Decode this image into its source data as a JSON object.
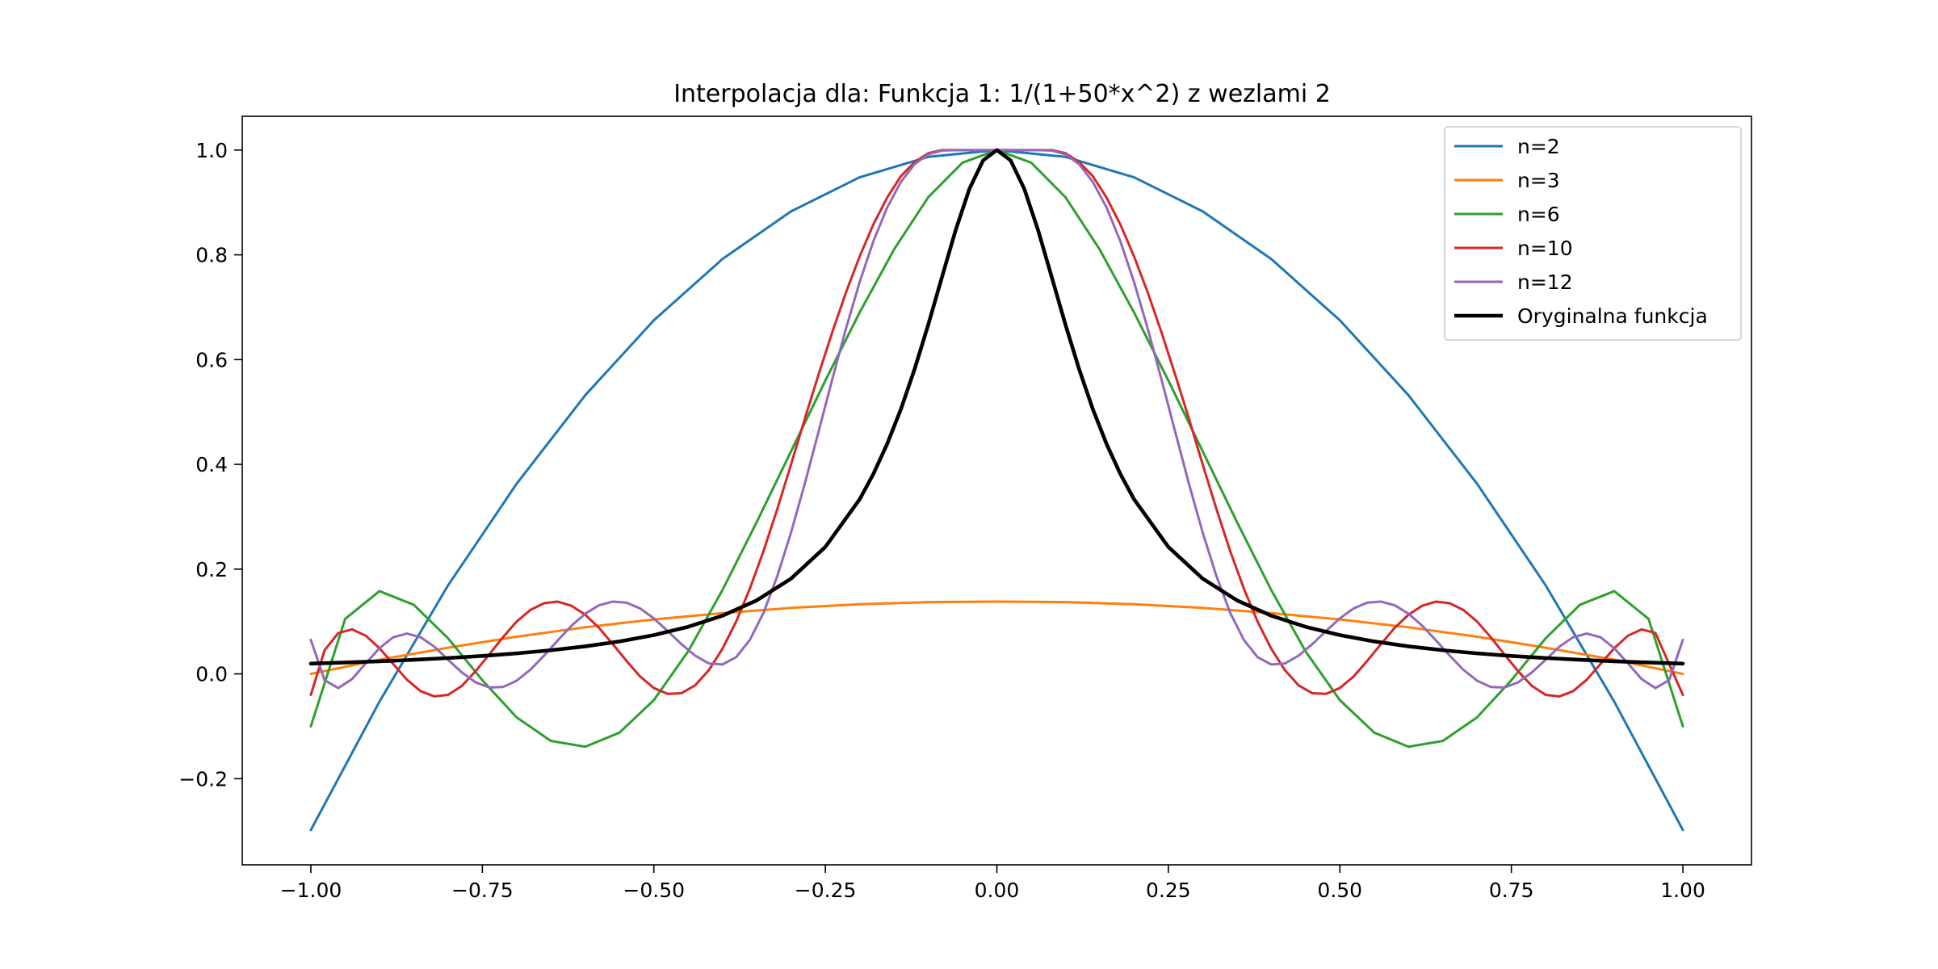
{
  "chart_data": {
    "type": "line",
    "title": "Interpolacja dla: Funkcja 1: 1/(1+50*x^2) z wezlami 2",
    "xlabel": "",
    "ylabel": "",
    "xlim": [
      -1.1,
      1.1
    ],
    "ylim": [
      -0.3645,
      1.0645
    ],
    "grid": false,
    "legend_position": "top-right",
    "x_ticks": [
      {
        "value": -1.0,
        "label": "−1.00"
      },
      {
        "value": -0.75,
        "label": "−0.75"
      },
      {
        "value": -0.5,
        "label": "−0.50"
      },
      {
        "value": -0.25,
        "label": "−0.25"
      },
      {
        "value": 0.0,
        "label": "0.00"
      },
      {
        "value": 0.25,
        "label": "0.25"
      },
      {
        "value": 0.5,
        "label": "0.50"
      },
      {
        "value": 0.75,
        "label": "0.75"
      },
      {
        "value": 1.0,
        "label": "1.00"
      }
    ],
    "y_ticks": [
      {
        "value": -0.2,
        "label": "−0.2"
      },
      {
        "value": 0.0,
        "label": "0.0"
      },
      {
        "value": 0.2,
        "label": "0.2"
      },
      {
        "value": 0.4,
        "label": "0.4"
      },
      {
        "value": 0.6,
        "label": "0.6"
      },
      {
        "value": 0.8,
        "label": "0.8"
      },
      {
        "value": 1.0,
        "label": "1.0"
      }
    ],
    "series": [
      {
        "name": "n=2",
        "color": "#1f77b4",
        "x": [
          -1.0,
          -0.9,
          -0.8,
          -0.7,
          -0.6,
          -0.5,
          -0.4,
          -0.3,
          -0.2,
          -0.1,
          0.0,
          0.1,
          0.2,
          0.3,
          0.4,
          0.5,
          0.6,
          0.7,
          0.8,
          0.9,
          1.0
        ],
        "y": [
          -0.298,
          -0.053,
          0.169,
          0.363,
          0.532,
          0.675,
          0.792,
          0.883,
          0.948,
          0.987,
          1.0,
          0.987,
          0.948,
          0.883,
          0.792,
          0.675,
          0.532,
          0.363,
          0.169,
          -0.053,
          -0.298
        ]
      },
      {
        "name": "n=3",
        "color": "#ff7f0e",
        "x": [
          -1.0,
          -0.9,
          -0.8,
          -0.7,
          -0.6,
          -0.5,
          -0.4,
          -0.3,
          -0.2,
          -0.1,
          0.0,
          0.1,
          0.2,
          0.3,
          0.4,
          0.5,
          0.6,
          0.7,
          0.8,
          0.9,
          1.0
        ],
        "y": [
          0.0,
          0.027,
          0.05,
          0.071,
          0.089,
          0.104,
          0.116,
          0.126,
          0.133,
          0.137,
          0.138,
          0.137,
          0.133,
          0.126,
          0.116,
          0.104,
          0.089,
          0.071,
          0.05,
          0.027,
          0.0
        ]
      },
      {
        "name": "n=6",
        "color": "#2ca02c",
        "x": [
          -1.0,
          -0.95,
          -0.9,
          -0.85,
          -0.8,
          -0.75,
          -0.7,
          -0.65,
          -0.6,
          -0.55,
          -0.5,
          -0.45,
          -0.4,
          -0.35,
          -0.3,
          -0.25,
          -0.2,
          -0.15,
          -0.1,
          -0.05,
          0.0,
          0.05,
          0.1,
          0.15,
          0.2,
          0.25,
          0.3,
          0.35,
          0.4,
          0.45,
          0.5,
          0.55,
          0.6,
          0.65,
          0.7,
          0.75,
          0.8,
          0.85,
          0.9,
          0.95,
          1.0
        ],
        "y": [
          -0.1,
          0.105,
          0.158,
          0.132,
          0.068,
          -0.012,
          -0.083,
          -0.128,
          -0.139,
          -0.112,
          -0.05,
          0.043,
          0.16,
          0.29,
          0.425,
          0.56,
          0.69,
          0.81,
          0.91,
          0.976,
          1.0,
          0.976,
          0.91,
          0.81,
          0.69,
          0.56,
          0.425,
          0.29,
          0.16,
          0.043,
          -0.05,
          -0.112,
          -0.139,
          -0.128,
          -0.083,
          -0.012,
          0.068,
          0.132,
          0.158,
          0.105,
          -0.1
        ]
      },
      {
        "name": "n=10",
        "color": "#d62728",
        "x": [
          -1.0,
          -0.98,
          -0.96,
          -0.94,
          -0.92,
          -0.9,
          -0.88,
          -0.86,
          -0.84,
          -0.82,
          -0.8,
          -0.78,
          -0.76,
          -0.74,
          -0.72,
          -0.7,
          -0.68,
          -0.66,
          -0.64,
          -0.62,
          -0.6,
          -0.58,
          -0.56,
          -0.54,
          -0.52,
          -0.5,
          -0.48,
          -0.46,
          -0.44,
          -0.42,
          -0.4,
          -0.38,
          -0.36,
          -0.34,
          -0.32,
          -0.3,
          -0.28,
          -0.26,
          -0.24,
          -0.22,
          -0.2,
          -0.18,
          -0.16,
          -0.14,
          -0.12,
          -0.1,
          -0.08,
          -0.06,
          -0.04,
          -0.02,
          0.0,
          0.02,
          0.04,
          0.06,
          0.08,
          0.1,
          0.12,
          0.14,
          0.16,
          0.18,
          0.2,
          0.22,
          0.24,
          0.26,
          0.28,
          0.3,
          0.32,
          0.34,
          0.36,
          0.38,
          0.4,
          0.42,
          0.44,
          0.46,
          0.48,
          0.5,
          0.52,
          0.54,
          0.56,
          0.58,
          0.6,
          0.62,
          0.64,
          0.66,
          0.68,
          0.7,
          0.72,
          0.74,
          0.76,
          0.78,
          0.8,
          0.82,
          0.84,
          0.86,
          0.88,
          0.9,
          0.92,
          0.94,
          0.96,
          1.0
        ],
        "y": [
          -0.04,
          0.045,
          0.078,
          0.085,
          0.073,
          0.049,
          0.019,
          -0.011,
          -0.033,
          -0.043,
          -0.04,
          -0.023,
          0.005,
          0.037,
          0.07,
          0.1,
          0.122,
          0.135,
          0.138,
          0.13,
          0.113,
          0.088,
          0.057,
          0.025,
          -0.005,
          -0.027,
          -0.038,
          -0.037,
          -0.022,
          0.007,
          0.048,
          0.1,
          0.163,
          0.235,
          0.315,
          0.4,
          0.487,
          0.571,
          0.652,
          0.728,
          0.797,
          0.858,
          0.909,
          0.95,
          0.977,
          0.994,
          1.0,
          1.0,
          1.0,
          1.0,
          1.0,
          1.0,
          1.0,
          1.0,
          1.0,
          0.994,
          0.977,
          0.95,
          0.909,
          0.858,
          0.797,
          0.728,
          0.652,
          0.571,
          0.487,
          0.4,
          0.315,
          0.235,
          0.163,
          0.1,
          0.048,
          0.007,
          -0.022,
          -0.037,
          -0.038,
          -0.027,
          -0.005,
          0.025,
          0.057,
          0.088,
          0.113,
          0.13,
          0.138,
          0.135,
          0.122,
          0.1,
          0.07,
          0.037,
          0.005,
          -0.023,
          -0.04,
          -0.043,
          -0.033,
          -0.011,
          0.019,
          0.049,
          0.073,
          0.085,
          0.078,
          -0.04
        ]
      },
      {
        "name": "n=12",
        "color": "#9467bd",
        "x": [
          -1.0,
          -0.98,
          -0.96,
          -0.94,
          -0.92,
          -0.9,
          -0.88,
          -0.86,
          -0.84,
          -0.82,
          -0.8,
          -0.78,
          -0.76,
          -0.74,
          -0.72,
          -0.7,
          -0.68,
          -0.66,
          -0.64,
          -0.62,
          -0.6,
          -0.58,
          -0.56,
          -0.54,
          -0.52,
          -0.5,
          -0.48,
          -0.46,
          -0.44,
          -0.42,
          -0.4,
          -0.38,
          -0.36,
          -0.34,
          -0.32,
          -0.3,
          -0.28,
          -0.26,
          -0.24,
          -0.22,
          -0.2,
          -0.18,
          -0.16,
          -0.14,
          -0.12,
          -0.1,
          -0.08,
          -0.06,
          -0.04,
          -0.02,
          0.0,
          0.02,
          0.04,
          0.06,
          0.08,
          0.1,
          0.12,
          0.14,
          0.16,
          0.18,
          0.2,
          0.22,
          0.24,
          0.26,
          0.28,
          0.3,
          0.32,
          0.34,
          0.36,
          0.38,
          0.4,
          0.42,
          0.44,
          0.46,
          0.48,
          0.5,
          0.52,
          0.54,
          0.56,
          0.58,
          0.6,
          0.62,
          0.64,
          0.66,
          0.68,
          0.7,
          0.72,
          0.74,
          0.76,
          0.78,
          0.8,
          0.82,
          0.84,
          0.86,
          0.88,
          0.9,
          0.92,
          0.94,
          0.96,
          0.98,
          1.0
        ],
        "y": [
          0.065,
          -0.012,
          -0.027,
          -0.01,
          0.02,
          0.049,
          0.07,
          0.077,
          0.07,
          0.052,
          0.027,
          0.003,
          -0.016,
          -0.026,
          -0.025,
          -0.013,
          0.008,
          0.035,
          0.064,
          0.092,
          0.115,
          0.131,
          0.138,
          0.136,
          0.125,
          0.106,
          0.082,
          0.057,
          0.035,
          0.02,
          0.018,
          0.032,
          0.065,
          0.117,
          0.187,
          0.27,
          0.363,
          0.462,
          0.562,
          0.659,
          0.748,
          0.826,
          0.89,
          0.939,
          0.973,
          0.992,
          0.999,
          1.0,
          1.0,
          1.0,
          1.0,
          1.0,
          1.0,
          1.0,
          0.999,
          0.992,
          0.973,
          0.939,
          0.89,
          0.826,
          0.748,
          0.659,
          0.562,
          0.462,
          0.363,
          0.27,
          0.187,
          0.117,
          0.065,
          0.032,
          0.018,
          0.02,
          0.035,
          0.057,
          0.082,
          0.106,
          0.125,
          0.136,
          0.138,
          0.131,
          0.115,
          0.092,
          0.064,
          0.035,
          0.008,
          -0.013,
          -0.025,
          -0.026,
          -0.016,
          0.003,
          0.027,
          0.052,
          0.07,
          0.077,
          0.07,
          0.049,
          0.02,
          -0.01,
          -0.027,
          -0.012,
          0.065
        ]
      },
      {
        "name": "Oryginalna funkcja",
        "color": "#000000",
        "x": [
          -1.0,
          -0.95,
          -0.9,
          -0.85,
          -0.8,
          -0.75,
          -0.7,
          -0.65,
          -0.6,
          -0.55,
          -0.5,
          -0.45,
          -0.4,
          -0.35,
          -0.3,
          -0.25,
          -0.2,
          -0.18,
          -0.16,
          -0.14,
          -0.12,
          -0.1,
          -0.08,
          -0.06,
          -0.04,
          -0.02,
          0.0,
          0.02,
          0.04,
          0.06,
          0.08,
          0.1,
          0.12,
          0.14,
          0.16,
          0.18,
          0.2,
          0.25,
          0.3,
          0.35,
          0.4,
          0.45,
          0.5,
          0.55,
          0.6,
          0.65,
          0.7,
          0.75,
          0.8,
          0.85,
          0.9,
          0.95,
          1.0
        ],
        "y": [
          0.0196,
          0.0217,
          0.0241,
          0.0269,
          0.0303,
          0.0343,
          0.0392,
          0.0452,
          0.0526,
          0.062,
          0.0741,
          0.0899,
          0.1111,
          0.1404,
          0.1818,
          0.2424,
          0.3333,
          0.3817,
          0.4386,
          0.505,
          0.5814,
          0.6667,
          0.7576,
          0.8475,
          0.9259,
          0.9804,
          1.0,
          0.9804,
          0.9259,
          0.8475,
          0.7576,
          0.6667,
          0.5814,
          0.505,
          0.4386,
          0.3817,
          0.3333,
          0.2424,
          0.1818,
          0.1404,
          0.1111,
          0.0899,
          0.0741,
          0.062,
          0.0526,
          0.0452,
          0.0392,
          0.0343,
          0.0303,
          0.0269,
          0.0241,
          0.0217,
          0.0196
        ]
      }
    ]
  }
}
